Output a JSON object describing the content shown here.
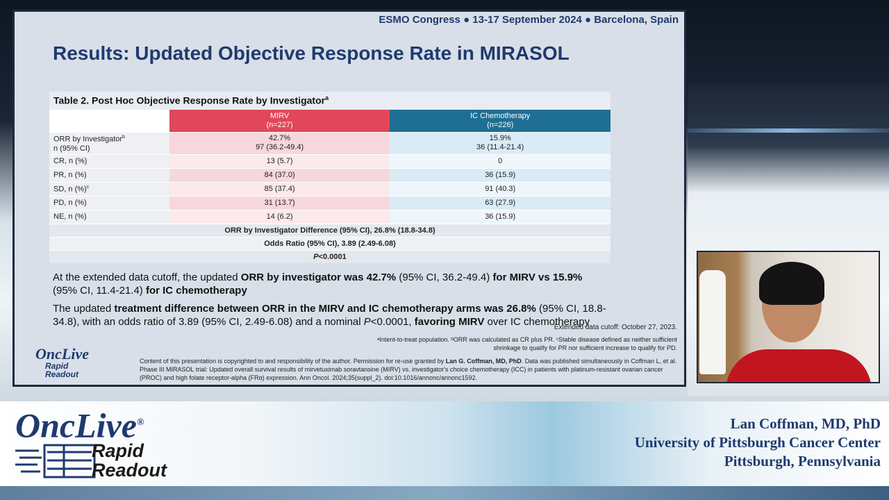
{
  "slide": {
    "conference": "ESMO Congress ● 13-17 September 2024 ● Barcelona, Spain",
    "title": "Results: Updated Objective Response Rate in MIRASOL",
    "table": {
      "caption": "Table 2. Post Hoc Objective Response Rate by Investigator",
      "caption_sup": "a",
      "header_mirv": "MIRV",
      "header_mirv_n": "(n=227)",
      "header_ic": "IC Chemotherapy",
      "header_ic_n": "(n=226)",
      "rows": [
        {
          "label": "ORR by Investigator",
          "sup": "b",
          "label2": "n (95% CI)",
          "mirv": "42.7%",
          "mirv2": "97 (36.2-49.4)",
          "ic": "15.9%",
          "ic2": "36 (11.4-21.4)"
        },
        {
          "label": "CR, n (%)",
          "mirv": "13 (5.7)",
          "ic": "0"
        },
        {
          "label": "PR, n (%)",
          "mirv": "84 (37.0)",
          "ic": "36 (15.9)"
        },
        {
          "label": "SD, n (%)",
          "sup": "c",
          "mirv": "85 (37.4)",
          "ic": "91 (40.3)"
        },
        {
          "label": "PD, n (%)",
          "mirv": "31 (13.7)",
          "ic": "63 (27.9)"
        },
        {
          "label": "NE, n (%)",
          "mirv": "14 (6.2)",
          "ic": "36 (15.9)"
        }
      ],
      "diff": "ORR by Investigator Difference (95% CI), 26.8% (18.8-34.8)",
      "odds": "Odds Ratio (95% CI), 3.89 (2.49-6.08)",
      "p_italic": "P",
      "p_rest": "<0.0001"
    },
    "bullet1": {
      "t1": "At the extended data cutoff, the updated ",
      "b1": "ORR by investigator was 42.7%",
      "t2": " (95% CI, 36.2-49.4) ",
      "b2": "for MIRV vs 15.9%",
      "t3": " (95% CI, 11.4-21.4) ",
      "b3": "for IC chemotherapy"
    },
    "bullet2": {
      "t1": "The updated ",
      "b1": "treatment difference between ORR in the MIRV and IC chemotherapy arms was 26.8%",
      "t2": " (95% CI, 18.8-34.8), with an odds ratio of 3.89 (95% CI, 2.49-6.08) and a nominal ",
      "i1": "P",
      "t3": "<0.0001, ",
      "b2": "favoring MIRV",
      "t4": " over IC chemotherapy"
    },
    "cutoff": "Extended data cutoff: October 27, 2023.",
    "footnotes": "ᵃIntent-to-treat population. ᵇORR was calculated as CR plus PR. ᶜStable disease defined as neither sufficient shrinkage to qualify for PR nor sufficient increase to qualify for PD.",
    "copyright_1": "Content of this presentation is copyrighted to and responsibility of the author. Permission for re-use granted by ",
    "copyright_author": "Lan G. Coffman, MD, PhD",
    "copyright_2": ". Data was published simultaneously in Coffman L, et al. Phase III MIRASOL trial: Updated overall survival results of mirvetuximab soravtansine (MIRV) vs. investigator's choice chemotherapy (ICC) in patients with platinum-resistant ovarian cancer (PROC) and high folate receptor-alpha (FRα) expression. Ann Oncol. 2024;35(suppl_2). doi:10.1016/annonc/annonc1592.",
    "logo_onc": "OncLive",
    "logo_rapid": "Rapid",
    "logo_readout": "Readout"
  },
  "brand": {
    "onc": "OncLive",
    "reg": "®",
    "rapid": "Rapid",
    "readout": "Readout"
  },
  "speaker": {
    "name": "Lan Coffman, MD, PhD",
    "affiliation": "University of Pittsburgh Cancer Center",
    "location": "Pittsburgh, Pennsylvania"
  },
  "colors": {
    "title_blue": "#1f3a6e",
    "mirv_red": "#e0475a",
    "ic_blue": "#1f6e93"
  }
}
